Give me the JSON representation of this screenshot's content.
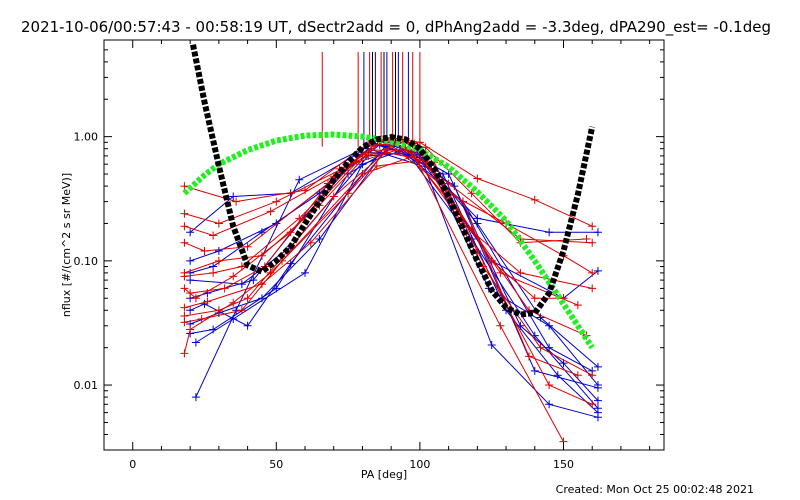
{
  "chart_data": {
    "type": "scatter",
    "title": "2021-10-06/00:57:43 - 00:58:19 UT, dSectr2add = 0, dPhAng2add = -3.3deg, dPA290_est= -0.1deg",
    "xlabel": "PA [deg]",
    "ylabel": "nflux [#/(cm^2 s sr MeV)]",
    "xlim": [
      -10,
      185
    ],
    "ylim": [
      0.003,
      6
    ],
    "yscale": "log",
    "xticks": [
      0,
      50,
      100,
      150
    ],
    "xtick_labels": [
      "0",
      "50",
      "100",
      "150"
    ],
    "yticks": [
      0.01,
      0.1,
      1.0
    ],
    "ytick_labels": [
      "0.01",
      "0.10",
      "1.00"
    ],
    "grid": false,
    "legend": "none",
    "colors": {
      "red": "#e00000",
      "blue": "#0000d0",
      "black": "#000000",
      "green": "#22ee22",
      "axis": "#000000"
    },
    "vertical_markers": {
      "top": 4.8,
      "bottom": 0.83,
      "red": [
        66,
        78.5,
        82.5,
        86.5,
        90.5,
        94,
        97.5,
        100
      ],
      "blue": [
        80.5,
        84.5,
        88.5,
        92.5,
        96
      ],
      "black": [
        83.5,
        87.5,
        91.5
      ]
    },
    "fit_black": {
      "name": "",
      "type": "dashed-curve",
      "x": [
        21,
        25,
        30,
        35,
        40,
        45,
        50,
        55,
        60,
        65,
        70,
        75,
        80,
        85,
        90,
        95,
        100,
        105,
        110,
        115,
        120,
        125,
        130,
        135,
        140,
        145,
        150,
        155,
        160
      ],
      "y": [
        5.5,
        1.9,
        0.58,
        0.19,
        0.092,
        0.082,
        0.1,
        0.13,
        0.2,
        0.3,
        0.45,
        0.62,
        0.82,
        0.95,
        0.99,
        0.95,
        0.8,
        0.55,
        0.33,
        0.18,
        0.1,
        0.058,
        0.042,
        0.037,
        0.038,
        0.055,
        0.12,
        0.34,
        1.2
      ]
    },
    "fit_green": {
      "name": "",
      "type": "dotted-curve",
      "x": [
        18,
        25,
        30,
        40,
        50,
        60,
        70,
        80,
        90,
        100,
        110,
        120,
        130,
        140,
        150,
        160
      ],
      "y": [
        0.35,
        0.49,
        0.6,
        0.78,
        0.93,
        1.02,
        1.04,
        1.0,
        0.91,
        0.78,
        0.57,
        0.36,
        0.21,
        0.1,
        0.045,
        0.02
      ]
    },
    "series": [
      {
        "color": "red",
        "x": [
          18,
          36,
          60,
          82,
          90,
          100,
          120,
          140,
          160
        ],
        "y": [
          0.4,
          0.3,
          0.37,
          0.88,
          0.98,
          0.9,
          0.46,
          0.31,
          0.19
        ]
      },
      {
        "color": "red",
        "x": [
          18,
          30,
          50,
          75,
          88,
          102,
          118,
          135,
          158
        ],
        "y": [
          0.24,
          0.2,
          0.3,
          0.58,
          0.95,
          0.82,
          0.35,
          0.14,
          0.15
        ]
      },
      {
        "color": "red",
        "x": [
          18,
          28,
          48,
          70,
          86,
          98,
          112,
          128,
          155
        ],
        "y": [
          0.19,
          0.16,
          0.25,
          0.48,
          0.92,
          0.88,
          0.28,
          0.08,
          0.044
        ]
      },
      {
        "color": "red",
        "x": [
          18,
          25,
          40,
          68,
          84,
          96,
          110,
          130,
          150,
          160
        ],
        "y": [
          0.14,
          0.12,
          0.13,
          0.42,
          0.85,
          0.9,
          0.35,
          0.2,
          0.11,
          0.08
        ]
      },
      {
        "color": "red",
        "x": [
          18,
          30,
          45,
          65,
          83,
          100,
          125,
          140,
          150
        ],
        "y": [
          0.08,
          0.1,
          0.11,
          0.28,
          0.78,
          0.78,
          0.1,
          0.05,
          0.05
        ]
      },
      {
        "color": "red",
        "x": [
          18,
          28,
          38,
          58,
          80,
          97,
          115,
          135,
          160
        ],
        "y": [
          0.075,
          0.08,
          0.09,
          0.22,
          0.72,
          0.74,
          0.2,
          0.08,
          0.06
        ]
      },
      {
        "color": "red",
        "x": [
          18,
          22,
          35,
          55,
          78,
          95,
          118,
          138,
          158
        ],
        "y": [
          0.06,
          0.05,
          0.075,
          0.17,
          0.62,
          0.82,
          0.18,
          0.04,
          0.025
        ]
      },
      {
        "color": "red",
        "x": [
          18,
          26,
          45,
          62,
          85,
          102,
          122,
          142,
          160
        ],
        "y": [
          0.042,
          0.047,
          0.065,
          0.14,
          0.58,
          0.65,
          0.09,
          0.02,
          0.012
        ]
      },
      {
        "color": "red",
        "x": [
          18,
          30,
          40,
          70,
          88,
          105,
          120,
          145,
          160
        ],
        "y": [
          0.036,
          0.04,
          0.05,
          0.33,
          0.75,
          0.62,
          0.12,
          0.01,
          0.007
        ]
      },
      {
        "color": "red",
        "x": [
          18,
          24,
          38,
          52,
          80,
          98,
          128,
          150
        ],
        "y": [
          0.032,
          0.034,
          0.04,
          0.1,
          0.5,
          0.7,
          0.03,
          0.0035
        ]
      },
      {
        "color": "red",
        "x": [
          18,
          20,
          35,
          48,
          75,
          90,
          115,
          138,
          155
        ],
        "y": [
          0.018,
          0.028,
          0.046,
          0.08,
          0.35,
          0.85,
          0.3,
          0.017,
          0.012
        ]
      },
      {
        "color": "red",
        "x": [
          20,
          32,
          46,
          72,
          92,
          110,
          135,
          160
        ],
        "y": [
          0.055,
          0.06,
          0.09,
          0.55,
          0.88,
          0.42,
          0.15,
          0.14
        ]
      },
      {
        "color": "blue",
        "x": [
          20,
          35,
          55,
          78,
          84,
          98,
          120,
          145,
          162
        ],
        "y": [
          0.17,
          0.33,
          0.35,
          0.72,
          0.95,
          0.74,
          0.22,
          0.17,
          0.17
        ]
      },
      {
        "color": "blue",
        "x": [
          20,
          30,
          50,
          70,
          86,
          100,
          125,
          150,
          162
        ],
        "y": [
          0.1,
          0.12,
          0.2,
          0.45,
          0.86,
          0.68,
          0.1,
          0.05,
          0.083
        ]
      },
      {
        "color": "blue",
        "x": [
          20,
          28,
          45,
          65,
          82,
          104,
          124,
          145,
          162
        ],
        "y": [
          0.08,
          0.09,
          0.17,
          0.35,
          0.8,
          0.55,
          0.06,
          0.03,
          0.01
        ]
      },
      {
        "color": "blue",
        "x": [
          20,
          26,
          42,
          60,
          80,
          96,
          118,
          140,
          162
        ],
        "y": [
          0.05,
          0.055,
          0.07,
          0.23,
          0.75,
          0.72,
          0.15,
          0.025,
          0.0065
        ]
      },
      {
        "color": "blue",
        "x": [
          20,
          25,
          40,
          55,
          88,
          108,
          130,
          148,
          162
        ],
        "y": [
          0.04,
          0.045,
          0.03,
          0.095,
          0.84,
          0.5,
          0.04,
          0.012,
          0.006
        ]
      },
      {
        "color": "blue",
        "x": [
          20,
          30,
          45,
          65,
          90,
          100,
          125,
          145,
          162
        ],
        "y": [
          0.031,
          0.038,
          0.05,
          0.15,
          0.9,
          0.72,
          0.021,
          0.007,
          0.0055
        ]
      },
      {
        "color": "blue",
        "x": [
          20,
          28,
          50,
          75,
          92,
          110,
          135,
          150,
          162
        ],
        "y": [
          0.026,
          0.028,
          0.06,
          0.5,
          0.85,
          0.5,
          0.03,
          0.015,
          0.0075
        ]
      },
      {
        "color": "blue",
        "x": [
          22,
          35,
          60,
          80,
          94,
          112,
          140,
          162
        ],
        "y": [
          0.022,
          0.034,
          0.08,
          0.6,
          0.78,
          0.4,
          0.013,
          0.0095
        ]
      },
      {
        "color": "blue",
        "x": [
          22,
          36,
          58,
          84,
          96,
          115,
          145,
          160
        ],
        "y": [
          0.008,
          0.04,
          0.45,
          0.88,
          0.7,
          0.3,
          0.02,
          0.013
        ]
      },
      {
        "color": "blue",
        "x": [
          20,
          38,
          55,
          82,
          99,
          120,
          142,
          162
        ],
        "y": [
          0.07,
          0.065,
          0.13,
          0.7,
          0.75,
          0.2,
          0.035,
          0.014
        ]
      }
    ]
  },
  "footer": {
    "created": "Created: Mon Oct 25 00:02:48 2021"
  }
}
